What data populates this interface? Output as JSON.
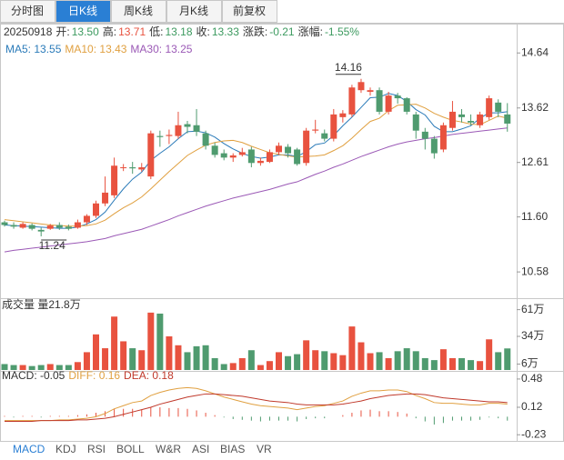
{
  "tabs": {
    "items": [
      "分时图",
      "日K线",
      "周K线",
      "月K线",
      "前复权"
    ],
    "active": 1
  },
  "info": {
    "date": "20250918",
    "items": [
      {
        "label": "开:",
        "value": "13.50",
        "color": "#3c9a5f"
      },
      {
        "label": "高:",
        "value": "13.71",
        "color": "#e8523f"
      },
      {
        "label": "低:",
        "value": "13.18",
        "color": "#3c9a5f"
      },
      {
        "label": "收:",
        "value": "13.33",
        "color": "#3c9a5f"
      },
      {
        "label": "涨跌:",
        "value": "-0.21",
        "color": "#3c9a5f"
      },
      {
        "label": "涨幅:",
        "value": "-1.55%",
        "color": "#3c9a5f"
      }
    ]
  },
  "chart_data": [
    {
      "type": "candlestick",
      "up_color": "#e8523f",
      "down_color": "#4f9b6f",
      "ylim": [
        10.11,
        15.15
      ],
      "yticks": [
        14.64,
        13.62,
        12.61,
        {
          "value": 11.6,
          "label": "11.60"
        },
        10.58
      ],
      "open": [
        11.5,
        11.45,
        11.4,
        11.45,
        11.36,
        11.38,
        11.45,
        11.42,
        11.4,
        11.5,
        11.62,
        11.85,
        12.0,
        12.52,
        12.52,
        12.48,
        12.35,
        13.1,
        13.1,
        13.1,
        13.32,
        13.3,
        13.15,
        12.92,
        12.78,
        12.7,
        12.75,
        12.85,
        12.6,
        12.62,
        12.8,
        12.9,
        12.85,
        12.6,
        13.2,
        13.15,
        13.05,
        13.45,
        13.5,
        13.95,
        13.92,
        13.95,
        13.55,
        13.85,
        13.8,
        13.5,
        13.18,
        13.05,
        12.85,
        13.25,
        13.5,
        13.38,
        13.3,
        13.45,
        13.72,
        13.5
      ],
      "high": [
        11.53,
        11.5,
        11.5,
        11.48,
        11.4,
        11.47,
        11.5,
        11.46,
        11.55,
        11.65,
        11.9,
        12.35,
        12.7,
        12.58,
        12.62,
        12.6,
        13.2,
        13.2,
        13.22,
        13.55,
        13.38,
        13.6,
        13.2,
        12.98,
        12.85,
        12.78,
        12.88,
        12.9,
        12.7,
        12.85,
        12.98,
        12.95,
        12.88,
        13.25,
        13.4,
        13.22,
        13.6,
        13.58,
        14.05,
        14.16,
        14.0,
        14.0,
        13.92,
        13.9,
        13.82,
        13.55,
        13.25,
        13.1,
        13.35,
        13.75,
        13.6,
        13.5,
        13.55,
        13.85,
        13.78,
        13.71
      ],
      "low": [
        11.42,
        11.38,
        11.38,
        11.35,
        11.24,
        11.36,
        11.36,
        11.35,
        11.38,
        11.45,
        11.58,
        11.8,
        11.95,
        12.45,
        12.4,
        12.44,
        12.3,
        12.9,
        12.95,
        13.05,
        13.15,
        13.1,
        12.85,
        12.7,
        12.65,
        12.62,
        12.72,
        12.52,
        12.55,
        12.6,
        12.75,
        12.7,
        12.55,
        12.55,
        13.15,
        13.0,
        13.0,
        13.35,
        13.45,
        13.9,
        13.85,
        13.5,
        13.5,
        13.7,
        13.5,
        13.05,
        12.85,
        12.68,
        12.8,
        13.2,
        13.35,
        13.3,
        13.25,
        13.4,
        13.45,
        13.18
      ],
      "close": [
        11.45,
        11.42,
        11.47,
        11.38,
        11.33,
        11.44,
        11.4,
        11.38,
        11.5,
        11.62,
        11.85,
        12.05,
        12.55,
        12.52,
        12.5,
        12.52,
        13.15,
        13.08,
        13.12,
        13.3,
        13.27,
        13.18,
        12.92,
        12.75,
        12.7,
        12.74,
        12.8,
        12.6,
        12.64,
        12.8,
        12.92,
        12.78,
        12.58,
        13.2,
        13.22,
        13.05,
        13.5,
        13.52,
        14.0,
        14.1,
        13.95,
        13.55,
        13.85,
        13.8,
        13.55,
        13.2,
        13.05,
        12.78,
        13.3,
        13.55,
        13.45,
        13.35,
        13.5,
        13.8,
        13.55,
        13.33
      ],
      "series": [
        {
          "name": "MA5",
          "label": "MA5: 13.55",
          "color": "#2b7bb9",
          "values": [
            11.45,
            11.44,
            11.43,
            11.42,
            11.41,
            11.4,
            11.39,
            11.39,
            11.41,
            11.47,
            11.55,
            11.69,
            11.91,
            12.12,
            12.3,
            12.43,
            12.65,
            12.78,
            12.9,
            13.05,
            13.18,
            13.19,
            13.16,
            13.08,
            12.96,
            12.86,
            12.78,
            12.72,
            12.69,
            12.71,
            12.75,
            12.75,
            12.72,
            12.81,
            12.94,
            12.97,
            13.11,
            13.29,
            13.45,
            13.63,
            13.81,
            13.82,
            13.89,
            13.85,
            13.74,
            13.59,
            13.49,
            13.28,
            13.18,
            13.18,
            13.23,
            13.29,
            13.43,
            13.53,
            13.53,
            13.55
          ]
        },
        {
          "name": "MA10",
          "label": "MA10: 13.43",
          "color": "#e0a040",
          "values": [
            11.55,
            11.53,
            11.51,
            11.49,
            11.47,
            11.45,
            11.44,
            11.43,
            11.43,
            11.44,
            11.47,
            11.54,
            11.66,
            11.77,
            11.86,
            11.97,
            12.12,
            12.28,
            12.44,
            12.59,
            12.74,
            12.84,
            12.93,
            12.98,
            13.01,
            13.02,
            12.98,
            12.91,
            12.85,
            12.79,
            12.76,
            12.73,
            12.71,
            12.72,
            12.73,
            12.75,
            12.83,
            12.92,
            13.06,
            13.22,
            13.37,
            13.43,
            13.57,
            13.67,
            13.68,
            13.69,
            13.62,
            13.52,
            13.45,
            13.39,
            13.36,
            13.32,
            13.31,
            13.39,
            13.47,
            13.43
          ]
        },
        {
          "name": "MA30",
          "label": "MA30: 13.25",
          "color": "#9b59b6",
          "values": [
            10.95,
            10.98,
            11.0,
            11.02,
            11.04,
            11.06,
            11.08,
            11.1,
            11.12,
            11.14,
            11.17,
            11.2,
            11.25,
            11.29,
            11.33,
            11.37,
            11.43,
            11.49,
            11.55,
            11.62,
            11.68,
            11.74,
            11.8,
            11.85,
            11.9,
            11.95,
            11.99,
            12.03,
            12.07,
            12.11,
            12.16,
            12.21,
            12.25,
            12.32,
            12.39,
            12.45,
            12.52,
            12.58,
            12.65,
            12.72,
            12.78,
            12.84,
            12.9,
            12.95,
            12.99,
            13.02,
            13.05,
            13.07,
            13.1,
            13.13,
            13.15,
            13.17,
            13.19,
            13.21,
            13.23,
            13.25
          ]
        }
      ]
    },
    {
      "type": "bar",
      "title": "成交量 量21.8万",
      "ylim": [
        0,
        68
      ],
      "yticks": [
        {
          "value": 61,
          "label": "61万"
        },
        {
          "value": 34,
          "label": "34万"
        },
        {
          "value": 6,
          "label": "6万"
        }
      ],
      "values": [
        6,
        5,
        5,
        4,
        5,
        6,
        5,
        5,
        8,
        18,
        36,
        22,
        54,
        29,
        22,
        20,
        58,
        57,
        34,
        25,
        18,
        24,
        25,
        12,
        6,
        7,
        12,
        20,
        5,
        9,
        18,
        14,
        16,
        30,
        20,
        19,
        17,
        15,
        44,
        28,
        17,
        18,
        12,
        19,
        22,
        19,
        12,
        10,
        21,
        12,
        12,
        10,
        9,
        31,
        18,
        21.8
      ]
    },
    {
      "type": "macd",
      "ylim": [
        -0.32,
        0.56
      ],
      "yticks": [
        0.48,
        0.12,
        -0.23
      ],
      "legend": [
        {
          "text": "MACD: -0.05",
          "color": "#333333"
        },
        {
          "text": "DIFF: 0.16",
          "color": "#e0a040"
        },
        {
          "text": "DEA: 0.18",
          "color": "#c0392b"
        }
      ],
      "hist": [
        0.01,
        -0.01,
        0.01,
        0.01,
        -0.01,
        0.01,
        0.01,
        0.01,
        0.02,
        0.03,
        0.05,
        0.07,
        0.1,
        0.1,
        0.1,
        0.09,
        0.12,
        0.12,
        0.11,
        0.11,
        0.1,
        0.08,
        0.05,
        0.02,
        -0.01,
        -0.03,
        -0.04,
        -0.05,
        -0.06,
        -0.05,
        -0.05,
        -0.05,
        -0.06,
        -0.03,
        -0.02,
        -0.02,
        0.0,
        0.02,
        0.05,
        0.08,
        0.09,
        0.07,
        0.07,
        0.06,
        0.04,
        -0.02,
        -0.06,
        -0.1,
        -0.08,
        -0.05,
        -0.05,
        -0.05,
        -0.04,
        -0.01,
        -0.02,
        -0.05
      ],
      "diff": [
        -0.05,
        -0.05,
        -0.05,
        -0.05,
        -0.05,
        -0.05,
        -0.04,
        -0.04,
        -0.03,
        -0.02,
        0.0,
        0.04,
        0.1,
        0.14,
        0.18,
        0.2,
        0.27,
        0.31,
        0.34,
        0.36,
        0.37,
        0.36,
        0.33,
        0.29,
        0.25,
        0.22,
        0.19,
        0.16,
        0.14,
        0.13,
        0.12,
        0.11,
        0.09,
        0.11,
        0.13,
        0.14,
        0.17,
        0.2,
        0.26,
        0.3,
        0.33,
        0.33,
        0.34,
        0.34,
        0.32,
        0.27,
        0.23,
        0.18,
        0.17,
        0.17,
        0.16,
        0.15,
        0.15,
        0.17,
        0.17,
        0.16
      ],
      "dea": [
        -0.06,
        -0.06,
        -0.06,
        -0.06,
        -0.05,
        -0.05,
        -0.05,
        -0.05,
        -0.04,
        -0.04,
        -0.03,
        -0.02,
        0.0,
        0.03,
        0.06,
        0.09,
        0.12,
        0.16,
        0.19,
        0.22,
        0.25,
        0.27,
        0.29,
        0.29,
        0.28,
        0.27,
        0.26,
        0.24,
        0.22,
        0.2,
        0.19,
        0.18,
        0.16,
        0.15,
        0.15,
        0.15,
        0.15,
        0.16,
        0.18,
        0.2,
        0.23,
        0.25,
        0.27,
        0.28,
        0.29,
        0.29,
        0.28,
        0.26,
        0.24,
        0.23,
        0.22,
        0.21,
        0.2,
        0.19,
        0.19,
        0.18
      ]
    }
  ],
  "indicator_tabs": {
    "items": [
      "MACD",
      "KDJ",
      "RSI",
      "BOLL",
      "W&R",
      "ASI",
      "BIAS",
      "VR"
    ],
    "active": 0
  }
}
